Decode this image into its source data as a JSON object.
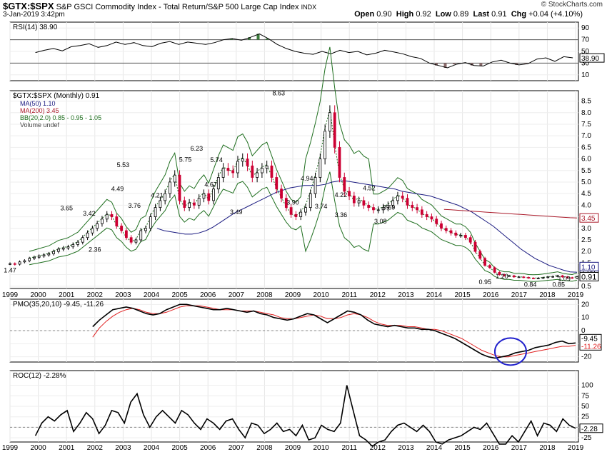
{
  "header": {
    "symbol": "$GTX:$SPX",
    "description": "S&P GSCI Commodity Index - Total Return/S&P 500 Large Cap Index",
    "exchange": "INDX",
    "date": "3-Jan-2019 3:42pm",
    "watermark": "© StockCharts.com",
    "open_label": "Open",
    "open": "0.90",
    "high_label": "High",
    "high": "0.92",
    "low_label": "Low",
    "low": "0.89",
    "last_label": "Last",
    "last": "0.91",
    "chg_label": "Chg",
    "chg": "+0.04 (+4.10%)"
  },
  "colors": {
    "price_up": "#000000",
    "price_down": "#cc0033",
    "ma50": "#1a1a80",
    "ma200": "#aa1a2a",
    "bb": "#1e6e1e",
    "pmo": "#000000",
    "pmo_signal": "#e02020",
    "rsi_fill_high": "#3a7a3a",
    "rsi_fill_low": "#8a6a6a",
    "circle": "#2020cc"
  },
  "chart_data": [
    {
      "type": "line",
      "panel": "rsi",
      "title": "RSI(14) 38.90",
      "yticks": [
        10,
        30,
        50,
        70,
        90
      ],
      "ylim": [
        0,
        100
      ],
      "guides": [
        30,
        70
      ],
      "last_label": "38.90",
      "series": [
        {
          "values": [
            48,
            52,
            55,
            51,
            58,
            60,
            63,
            57,
            60,
            66,
            62,
            65,
            60,
            58,
            64,
            67,
            62,
            66,
            64,
            62,
            65,
            70,
            72,
            69,
            74,
            80,
            72,
            62,
            55,
            50,
            47,
            45,
            50,
            46,
            52,
            48,
            50,
            44,
            47,
            52,
            49,
            46,
            41,
            38,
            30,
            26,
            22,
            28,
            31,
            26,
            25,
            32,
            35,
            30,
            27,
            29,
            37,
            39,
            33,
            41,
            39
          ]
        }
      ]
    },
    {
      "type": "line",
      "panel": "price",
      "title": "$GTX:$SPX (Monthly) 0.91",
      "legend": [
        "MA(50) 1.10",
        "MA(200) 3.45",
        "BB(20,2.0) 0.85 - 0.95 - 1.05",
        "Volume undef"
      ],
      "x_start": 1999.0,
      "x_end": 2019.1,
      "xticks": [
        "1999",
        "2000",
        "2001",
        "2002",
        "2003",
        "2004",
        "2005",
        "2006",
        "2007",
        "2008",
        "2009",
        "2010",
        "2011",
        "2012",
        "2013",
        "2014",
        "2015",
        "2016",
        "2017",
        "2018",
        "2019"
      ],
      "yticks": [
        0.5,
        1.0,
        1.5,
        2.0,
        2.5,
        3.0,
        3.5,
        4.0,
        4.5,
        5.0,
        5.5,
        6.0,
        6.5,
        7.0,
        7.5,
        8.0,
        8.5
      ],
      "ylim": [
        0.4,
        8.95
      ],
      "right_labels": [
        "3.45",
        "1.09",
        "1.10",
        "0.91"
      ],
      "annotations": [
        {
          "x": 1999.0,
          "y": 1.47,
          "label": "1.47"
        },
        {
          "x": 2001.0,
          "y": 3.65,
          "label": "3.65"
        },
        {
          "x": 2001.8,
          "y": 3.42,
          "label": "3.42"
        },
        {
          "x": 2002.0,
          "y": 2.36,
          "label": "2.36"
        },
        {
          "x": 2003.0,
          "y": 5.53,
          "label": "5.53"
        },
        {
          "x": 2002.8,
          "y": 4.49,
          "label": "4.49"
        },
        {
          "x": 2003.4,
          "y": 3.76,
          "label": "3.76"
        },
        {
          "x": 2004.2,
          "y": 4.21,
          "label": "4.21"
        },
        {
          "x": 2005.2,
          "y": 5.75,
          "label": "5.75"
        },
        {
          "x": 2005.6,
          "y": 6.23,
          "label": "6.23"
        },
        {
          "x": 2006.3,
          "y": 5.74,
          "label": "5.74"
        },
        {
          "x": 2006.1,
          "y": 4.67,
          "label": "4.67"
        },
        {
          "x": 2007.0,
          "y": 3.49,
          "label": "3.49"
        },
        {
          "x": 2008.5,
          "y": 8.63,
          "label": "8.63"
        },
        {
          "x": 2009.5,
          "y": 4.94,
          "label": "4.94"
        },
        {
          "x": 2009.0,
          "y": 3.9,
          "label": "3.90"
        },
        {
          "x": 2010.0,
          "y": 3.74,
          "label": "3.74"
        },
        {
          "x": 2010.7,
          "y": 4.22,
          "label": "4.22"
        },
        {
          "x": 2011.7,
          "y": 4.52,
          "label": "4.52"
        },
        {
          "x": 2010.7,
          "y": 3.36,
          "label": "3.36"
        },
        {
          "x": 2012.4,
          "y": 3.69,
          "label": "3.69"
        },
        {
          "x": 2012.1,
          "y": 3.08,
          "label": "3.08"
        },
        {
          "x": 2016.4,
          "y": 1.2,
          "label": "1.20"
        },
        {
          "x": 2018.6,
          "y": 1.09,
          "label": "1.09"
        },
        {
          "x": 2015.8,
          "y": 0.95,
          "label": "0.95"
        },
        {
          "x": 2017.4,
          "y": 0.84,
          "label": "0.84"
        },
        {
          "x": 2018.4,
          "y": 0.85,
          "label": "0.85"
        }
      ],
      "series": [
        {
          "name": "$GTX:$SPX",
          "values": [
            1.47,
            1.45,
            1.55,
            1.6,
            1.7,
            1.75,
            1.8,
            1.85,
            1.9,
            2.0,
            2.1,
            2.15,
            2.2,
            2.3,
            2.4,
            2.6,
            2.8,
            3.0,
            3.2,
            3.4,
            3.6,
            3.5,
            3.1,
            2.9,
            2.6,
            2.4,
            2.5,
            2.9,
            3.0,
            3.5,
            3.9,
            4.2,
            4.5,
            5.0,
            5.3,
            4.2,
            3.9,
            4.1,
            4.0,
            4.3,
            4.5,
            4.2,
            4.7,
            5.2,
            5.6,
            5.5,
            5.4,
            5.9,
            6.0,
            5.7,
            5.2,
            5.4,
            5.6,
            5.7,
            5.2,
            4.7,
            4.3,
            3.9,
            3.6,
            3.5,
            3.7,
            3.9,
            4.5,
            5.2,
            6.0,
            7.2,
            8.0,
            6.5,
            5.2,
            4.6,
            4.4,
            4.1,
            4.2,
            4.0,
            3.9,
            3.8,
            3.8,
            3.9,
            4.0,
            4.2,
            4.4,
            4.3,
            4.0,
            3.9,
            3.8,
            3.6,
            3.5,
            3.4,
            3.2,
            3.0,
            2.9,
            2.8,
            2.7,
            2.7,
            2.6,
            2.4,
            2.0,
            1.7,
            1.4,
            1.3,
            1.1,
            1.0,
            0.95,
            0.95,
            0.9,
            0.9,
            0.88,
            0.85,
            0.84,
            0.85,
            0.87,
            0.9,
            0.92,
            0.95,
            0.9,
            0.87,
            0.85,
            0.91
          ]
        },
        {
          "name": "MA(50) 1.10",
          "values": [
            null,
            null,
            null,
            null,
            null,
            null,
            null,
            null,
            null,
            null,
            null,
            null,
            null,
            null,
            null,
            null,
            null,
            null,
            null,
            null,
            null,
            3.0,
            2.9,
            2.85,
            2.8,
            2.75,
            2.75,
            2.8,
            2.9,
            3.05,
            3.25,
            3.45,
            3.65,
            3.8,
            3.95,
            4.1,
            4.25,
            4.4,
            4.55,
            4.65,
            4.75,
            4.8,
            4.85,
            4.85,
            4.85,
            4.9,
            5.0,
            5.05,
            5.05,
            5.0,
            4.95,
            4.9,
            4.85,
            4.8,
            4.75,
            4.7,
            4.6,
            4.55,
            4.5,
            4.45,
            4.4,
            4.3,
            4.2,
            4.1,
            4.0,
            3.85,
            3.7,
            3.5,
            3.3,
            3.1,
            2.85,
            2.6,
            2.35,
            2.1,
            1.9,
            1.7,
            1.55,
            1.4,
            1.3,
            1.2,
            1.12,
            1.1
          ]
        },
        {
          "name": "MA(200) 3.45",
          "values": [
            null,
            null,
            null,
            null,
            null,
            null,
            null,
            null,
            null,
            null,
            null,
            null,
            null,
            null,
            null,
            null,
            null,
            null,
            null,
            null,
            null,
            null,
            null,
            null,
            null,
            null,
            null,
            null,
            null,
            null,
            null,
            null,
            null,
            null,
            null,
            null,
            null,
            null,
            null,
            null,
            null,
            null,
            null,
            null,
            null,
            null,
            null,
            null,
            null,
            null,
            null,
            null,
            null,
            null,
            null,
            null,
            null,
            null,
            null,
            null,
            null,
            null,
            3.82,
            3.8,
            3.78,
            3.76,
            3.74,
            3.72,
            3.7,
            3.68,
            3.66,
            3.64,
            3.62,
            3.6,
            3.58,
            3.56,
            3.54,
            3.52,
            3.5,
            3.48,
            3.46,
            3.45
          ]
        }
      ]
    },
    {
      "type": "line",
      "panel": "pmo",
      "title": "PMO(35,20,10) -9.45, -11.26",
      "yticks": [
        -20,
        -10,
        0,
        10,
        20
      ],
      "ylim": [
        -24,
        24
      ],
      "right_labels": [
        "-9.45",
        "-11.26"
      ],
      "series": [
        {
          "name": "PMO",
          "values": [
            null,
            null,
            null,
            null,
            null,
            null,
            3,
            8,
            12,
            16,
            17,
            18,
            17,
            15,
            13,
            12,
            13,
            16,
            18,
            20,
            20,
            19,
            18,
            17,
            16,
            16,
            17,
            16,
            15,
            14,
            15,
            13,
            12,
            10,
            9,
            8,
            9,
            11,
            13,
            12,
            9,
            6,
            9,
            12,
            15,
            14,
            12,
            8,
            5,
            4,
            3,
            4,
            3,
            2,
            2,
            1,
            1,
            0,
            -2,
            -4,
            -6,
            -9,
            -12,
            -15,
            -18,
            -20,
            -21,
            -20,
            -19,
            -17,
            -16,
            -15,
            -13,
            -12,
            -11,
            -9,
            -8,
            -10,
            -9.45
          ]
        },
        {
          "name": "Signal",
          "values": [
            null,
            null,
            null,
            null,
            null,
            null,
            -5,
            2,
            7,
            11,
            14,
            16,
            17,
            16,
            14,
            13,
            13,
            14,
            16,
            18,
            19,
            19,
            19,
            18,
            17,
            16,
            16,
            16,
            15,
            15,
            15,
            14,
            13,
            12,
            10,
            9,
            9,
            10,
            11,
            12,
            11,
            9,
            9,
            10,
            12,
            13,
            12,
            10,
            7,
            5,
            4,
            4,
            4,
            3,
            3,
            2,
            1,
            1,
            0,
            -2,
            -4,
            -6,
            -9,
            -12,
            -15,
            -17,
            -19,
            -20,
            -20,
            -19,
            -18,
            -17,
            -16,
            -15,
            -14,
            -13,
            -12,
            -12,
            -11.26
          ]
        }
      ],
      "circle": {
        "x": 2016.7,
        "y": -16
      }
    },
    {
      "type": "line",
      "panel": "roc",
      "title": "ROC(12) -2.28%",
      "yticks": [
        -25,
        0,
        25,
        50,
        75,
        100
      ],
      "ylim": [
        -35,
        135
      ],
      "right_labels": [
        "-2.28"
      ],
      "series": [
        {
          "name": "ROC",
          "values": [
            -20,
            10,
            25,
            15,
            30,
            40,
            -10,
            10,
            35,
            20,
            -15,
            5,
            40,
            35,
            10,
            60,
            80,
            30,
            0,
            25,
            40,
            25,
            10,
            40,
            30,
            10,
            -5,
            20,
            10,
            -5,
            15,
            20,
            -5,
            -25,
            10,
            5,
            -15,
            -5,
            10,
            -10,
            -5,
            -20,
            5,
            -30,
            -25,
            5,
            -5,
            -10,
            10,
            100,
            40,
            -20,
            -30,
            -45,
            -35,
            -30,
            -10,
            5,
            10,
            0,
            -10,
            5,
            -10,
            -35,
            -40,
            -30,
            -25,
            -20,
            -10,
            0,
            -5,
            10,
            -15,
            -40,
            -40,
            -20,
            -35,
            -10,
            15,
            -20,
            10,
            5,
            -10,
            20,
            5,
            -2.28
          ]
        }
      ]
    }
  ]
}
